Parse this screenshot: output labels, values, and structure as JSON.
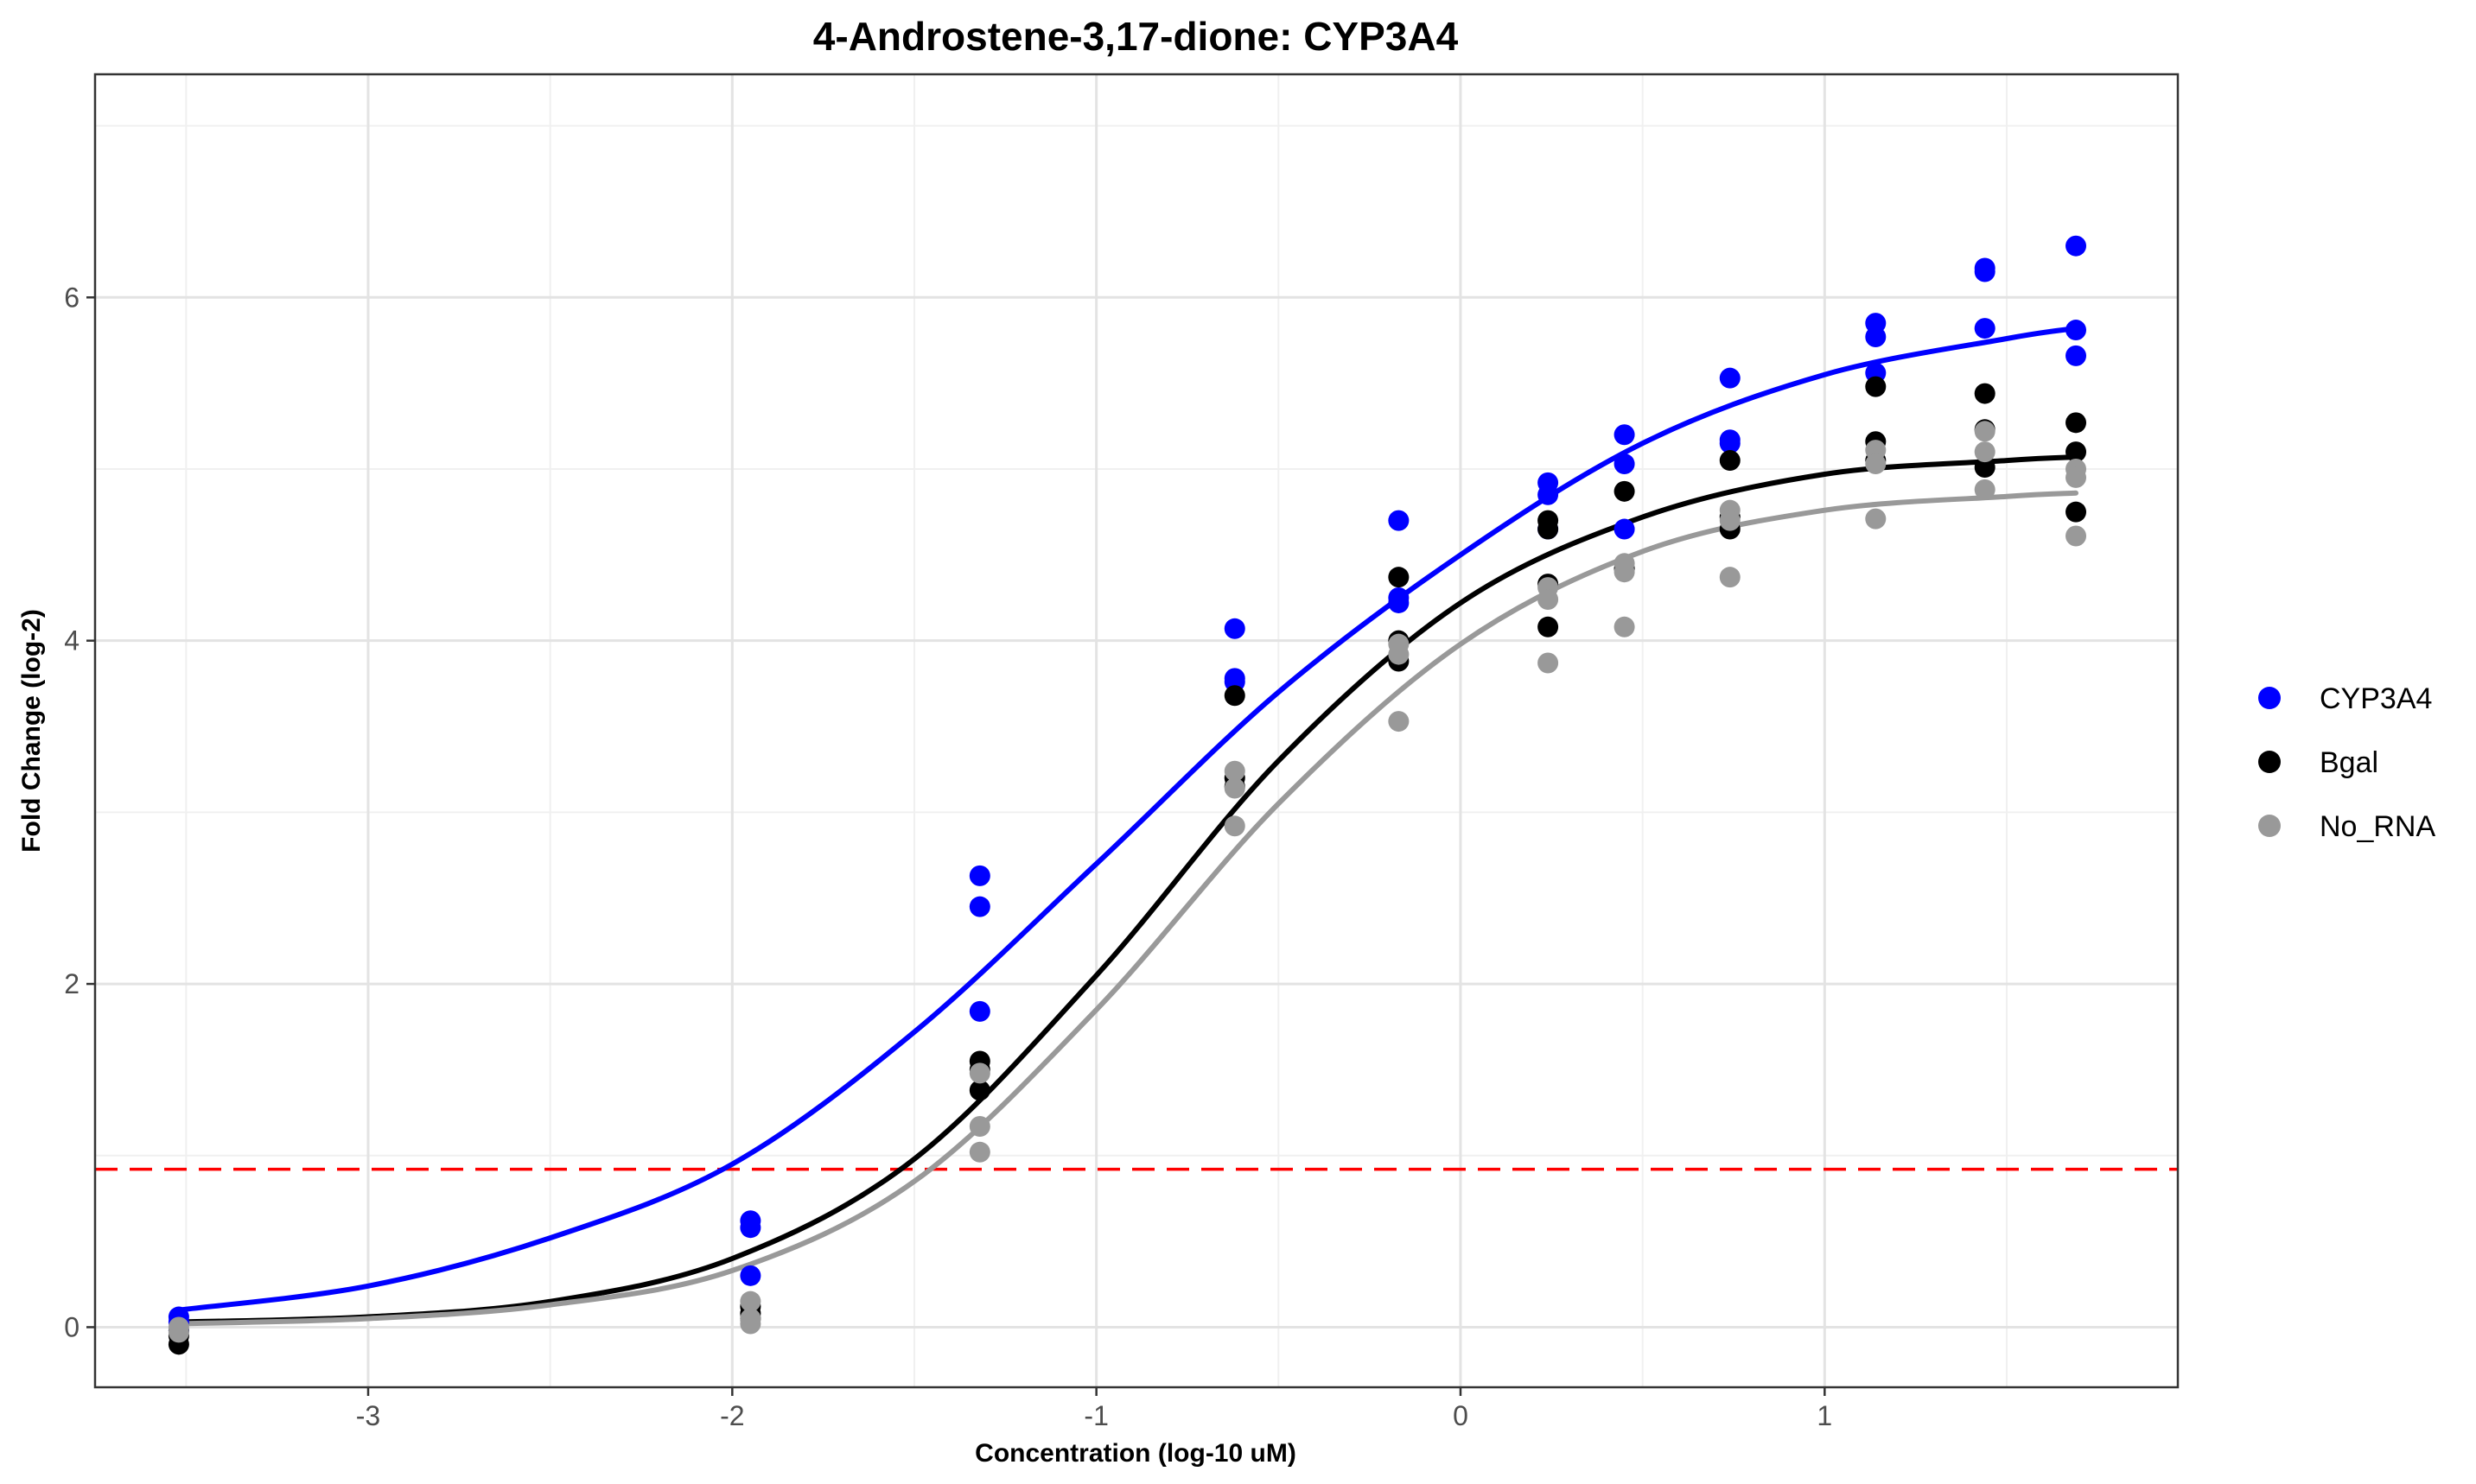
{
  "chart_data": {
    "type": "scatter",
    "title": "4-Androstene-3,17-dione: CYP3A4",
    "xlabel": "Concentration (log-10 uM)",
    "ylabel": "Fold Change (log-2)",
    "xlim": [
      -3.75,
      1.97
    ],
    "ylim": [
      -0.35,
      7.3
    ],
    "x_ticks": [
      -3,
      -2,
      -1,
      0,
      1
    ],
    "y_ticks": [
      0,
      2,
      4,
      6
    ],
    "grid": true,
    "legend_position": "right",
    "threshold": {
      "y": 0.92,
      "color": "#ff0000",
      "style": "dashed"
    },
    "series": [
      {
        "name": "CYP3A4",
        "color": "#0000ff",
        "points": [
          [
            -3.52,
            0.06
          ],
          [
            -3.52,
            0.03
          ],
          [
            -3.52,
            -0.02
          ],
          [
            -1.95,
            0.62
          ],
          [
            -1.95,
            0.58
          ],
          [
            -1.95,
            0.3
          ],
          [
            -1.32,
            2.63
          ],
          [
            -1.32,
            2.45
          ],
          [
            -1.32,
            1.84
          ],
          [
            -0.62,
            4.07
          ],
          [
            -0.62,
            3.78
          ],
          [
            -0.62,
            3.76
          ],
          [
            -0.17,
            4.7
          ],
          [
            -0.17,
            4.25
          ],
          [
            -0.17,
            4.22
          ],
          [
            0.24,
            4.92
          ],
          [
            0.24,
            4.85
          ],
          [
            0.24,
            4.65
          ],
          [
            0.45,
            5.2
          ],
          [
            0.45,
            5.03
          ],
          [
            0.45,
            4.65
          ],
          [
            0.74,
            5.53
          ],
          [
            0.74,
            5.17
          ],
          [
            0.74,
            5.15
          ],
          [
            1.14,
            5.85
          ],
          [
            1.14,
            5.77
          ],
          [
            1.14,
            5.56
          ],
          [
            1.44,
            6.17
          ],
          [
            1.44,
            6.15
          ],
          [
            1.44,
            5.82
          ],
          [
            1.69,
            6.3
          ],
          [
            1.69,
            5.81
          ],
          [
            1.69,
            5.66
          ]
        ],
        "fit": [
          [
            -3.52,
            0.1
          ],
          [
            -3.0,
            0.24
          ],
          [
            -2.5,
            0.52
          ],
          [
            -2.0,
            0.95
          ],
          [
            -1.5,
            1.72
          ],
          [
            -1.0,
            2.7
          ],
          [
            -0.5,
            3.7
          ],
          [
            0.0,
            4.5
          ],
          [
            0.5,
            5.15
          ],
          [
            1.0,
            5.55
          ],
          [
            1.5,
            5.76
          ],
          [
            1.69,
            5.82
          ]
        ]
      },
      {
        "name": "Bgal",
        "color": "#000000",
        "points": [
          [
            -3.52,
            -0.02
          ],
          [
            -3.52,
            -0.05
          ],
          [
            -3.52,
            -0.1
          ],
          [
            -1.95,
            0.12
          ],
          [
            -1.95,
            0.08
          ],
          [
            -1.95,
            0.05
          ],
          [
            -1.32,
            1.55
          ],
          [
            -1.32,
            1.5
          ],
          [
            -1.32,
            1.38
          ],
          [
            -0.62,
            3.68
          ],
          [
            -0.62,
            3.2
          ],
          [
            -0.62,
            3.15
          ],
          [
            -0.17,
            4.37
          ],
          [
            -0.17,
            4.0
          ],
          [
            -0.17,
            3.88
          ],
          [
            0.24,
            4.7
          ],
          [
            0.24,
            4.65
          ],
          [
            0.24,
            4.33
          ],
          [
            0.24,
            4.08
          ],
          [
            0.45,
            4.87
          ],
          [
            0.45,
            4.42
          ],
          [
            0.74,
            5.05
          ],
          [
            0.74,
            4.72
          ],
          [
            0.74,
            4.65
          ],
          [
            1.14,
            5.48
          ],
          [
            1.14,
            5.16
          ],
          [
            1.14,
            5.05
          ],
          [
            1.44,
            5.44
          ],
          [
            1.44,
            5.23
          ],
          [
            1.44,
            5.01
          ],
          [
            1.69,
            5.27
          ],
          [
            1.69,
            5.1
          ],
          [
            1.69,
            4.75
          ]
        ],
        "fit": [
          [
            -3.52,
            0.03
          ],
          [
            -3.0,
            0.06
          ],
          [
            -2.5,
            0.15
          ],
          [
            -2.0,
            0.4
          ],
          [
            -1.5,
            0.98
          ],
          [
            -1.0,
            2.05
          ],
          [
            -0.5,
            3.3
          ],
          [
            0.0,
            4.22
          ],
          [
            0.5,
            4.72
          ],
          [
            1.0,
            4.97
          ],
          [
            1.5,
            5.05
          ],
          [
            1.69,
            5.07
          ]
        ]
      },
      {
        "name": "No_RNA",
        "color": "#999999",
        "points": [
          [
            -3.52,
            0.0
          ],
          [
            -3.52,
            -0.03
          ],
          [
            -1.95,
            0.15
          ],
          [
            -1.95,
            0.05
          ],
          [
            -1.95,
            0.02
          ],
          [
            -1.32,
            1.48
          ],
          [
            -1.32,
            1.17
          ],
          [
            -1.32,
            1.02
          ],
          [
            -0.62,
            3.24
          ],
          [
            -0.62,
            3.14
          ],
          [
            -0.62,
            2.92
          ],
          [
            -0.17,
            3.98
          ],
          [
            -0.17,
            3.92
          ],
          [
            -0.17,
            3.53
          ],
          [
            0.24,
            4.31
          ],
          [
            0.24,
            4.24
          ],
          [
            0.24,
            3.87
          ],
          [
            0.45,
            4.45
          ],
          [
            0.45,
            4.4
          ],
          [
            0.45,
            4.08
          ],
          [
            0.74,
            4.76
          ],
          [
            0.74,
            4.7
          ],
          [
            0.74,
            4.37
          ],
          [
            1.14,
            5.11
          ],
          [
            1.14,
            5.03
          ],
          [
            1.14,
            4.71
          ],
          [
            1.44,
            5.22
          ],
          [
            1.44,
            5.1
          ],
          [
            1.44,
            4.88
          ],
          [
            1.69,
            5.0
          ],
          [
            1.69,
            4.95
          ],
          [
            1.69,
            4.61
          ]
        ],
        "fit": [
          [
            -3.52,
            0.02
          ],
          [
            -3.0,
            0.05
          ],
          [
            -2.5,
            0.13
          ],
          [
            -2.0,
            0.33
          ],
          [
            -1.5,
            0.85
          ],
          [
            -1.0,
            1.85
          ],
          [
            -0.5,
            3.05
          ],
          [
            0.0,
            3.98
          ],
          [
            0.5,
            4.52
          ],
          [
            1.0,
            4.76
          ],
          [
            1.5,
            4.84
          ],
          [
            1.69,
            4.86
          ]
        ]
      }
    ]
  }
}
